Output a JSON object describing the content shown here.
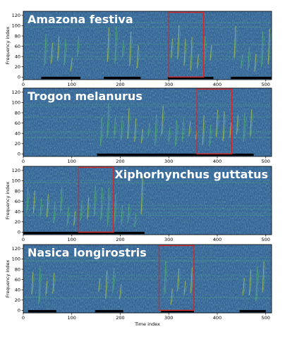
{
  "chart_data": [
    {
      "type": "heatmap",
      "title": "Amazona festiva",
      "title_position": "top-left",
      "ylabel": "Frequency index",
      "xlabel": "",
      "xlim": [
        0,
        512
      ],
      "ylim": [
        -5,
        128
      ],
      "xticks": [
        0,
        100,
        200,
        300,
        400,
        500
      ],
      "yticks": [
        0,
        20,
        40,
        60,
        80,
        100,
        120
      ],
      "colormap": "viridis",
      "selection_box": {
        "x": [
          300,
          372
        ],
        "y": [
          0,
          126
        ],
        "color": "#d62728"
      },
      "annotation_segments": [
        [
          37,
          118
        ],
        [
          166,
          242
        ],
        [
          298,
          392
        ],
        [
          428,
          512
        ]
      ]
    },
    {
      "type": "heatmap",
      "title": "Trogon melanurus",
      "title_position": "top-left",
      "ylabel": "",
      "xlabel": "",
      "xlim": [
        0,
        512
      ],
      "ylim": [
        -5,
        128
      ],
      "xticks": [
        0,
        100,
        200,
        300,
        400,
        500
      ],
      "yticks": [
        0,
        20,
        40,
        60,
        80,
        100,
        120
      ],
      "colormap": "viridis",
      "selection_box": {
        "x": [
          358,
          430
        ],
        "y": [
          0,
          126
        ],
        "color": "#d62728"
      },
      "annotation_segments": [
        [
          152,
          475
        ]
      ]
    },
    {
      "type": "heatmap",
      "title": "Xiphorhynchus guttatus",
      "title_position": "top-right",
      "ylabel": "Frequency index",
      "xlabel": "",
      "xlim": [
        0,
        512
      ],
      "ylim": [
        -5,
        128
      ],
      "xticks": [
        0,
        100,
        200,
        300,
        400,
        500
      ],
      "yticks": [
        0,
        20,
        40,
        60,
        80,
        100,
        120
      ],
      "colormap": "viridis",
      "selection_box": {
        "x": [
          114,
          186
        ],
        "y": [
          0,
          126
        ],
        "color": "#d62728"
      },
      "annotation_segments": [
        [
          0,
          250
        ]
      ]
    },
    {
      "type": "heatmap",
      "title": "Nasica longirostris",
      "title_position": "top-left",
      "ylabel": "Frequency index",
      "xlabel": "Time index",
      "xlim": [
        0,
        512
      ],
      "ylim": [
        -5,
        128
      ],
      "xticks": [
        0,
        100,
        200,
        300,
        400,
        500
      ],
      "yticks": [
        0,
        20,
        40,
        60,
        80,
        100,
        120
      ],
      "colormap": "viridis",
      "selection_box": {
        "x": [
          280,
          352
        ],
        "y": [
          0,
          126
        ],
        "color": "#d62728"
      },
      "annotation_segments": [
        [
          10,
          68
        ],
        [
          148,
          206
        ],
        [
          284,
          352
        ],
        [
          446,
          500
        ]
      ]
    }
  ],
  "colors": {
    "background_dark": "#2f4a8c",
    "background_mid": "#3a6f9a",
    "highlight_green": "#5fcf6a",
    "highlight_yellow": "#d8e63a",
    "box": "#d62728",
    "segment": "#000000",
    "text": "#ffffff"
  }
}
